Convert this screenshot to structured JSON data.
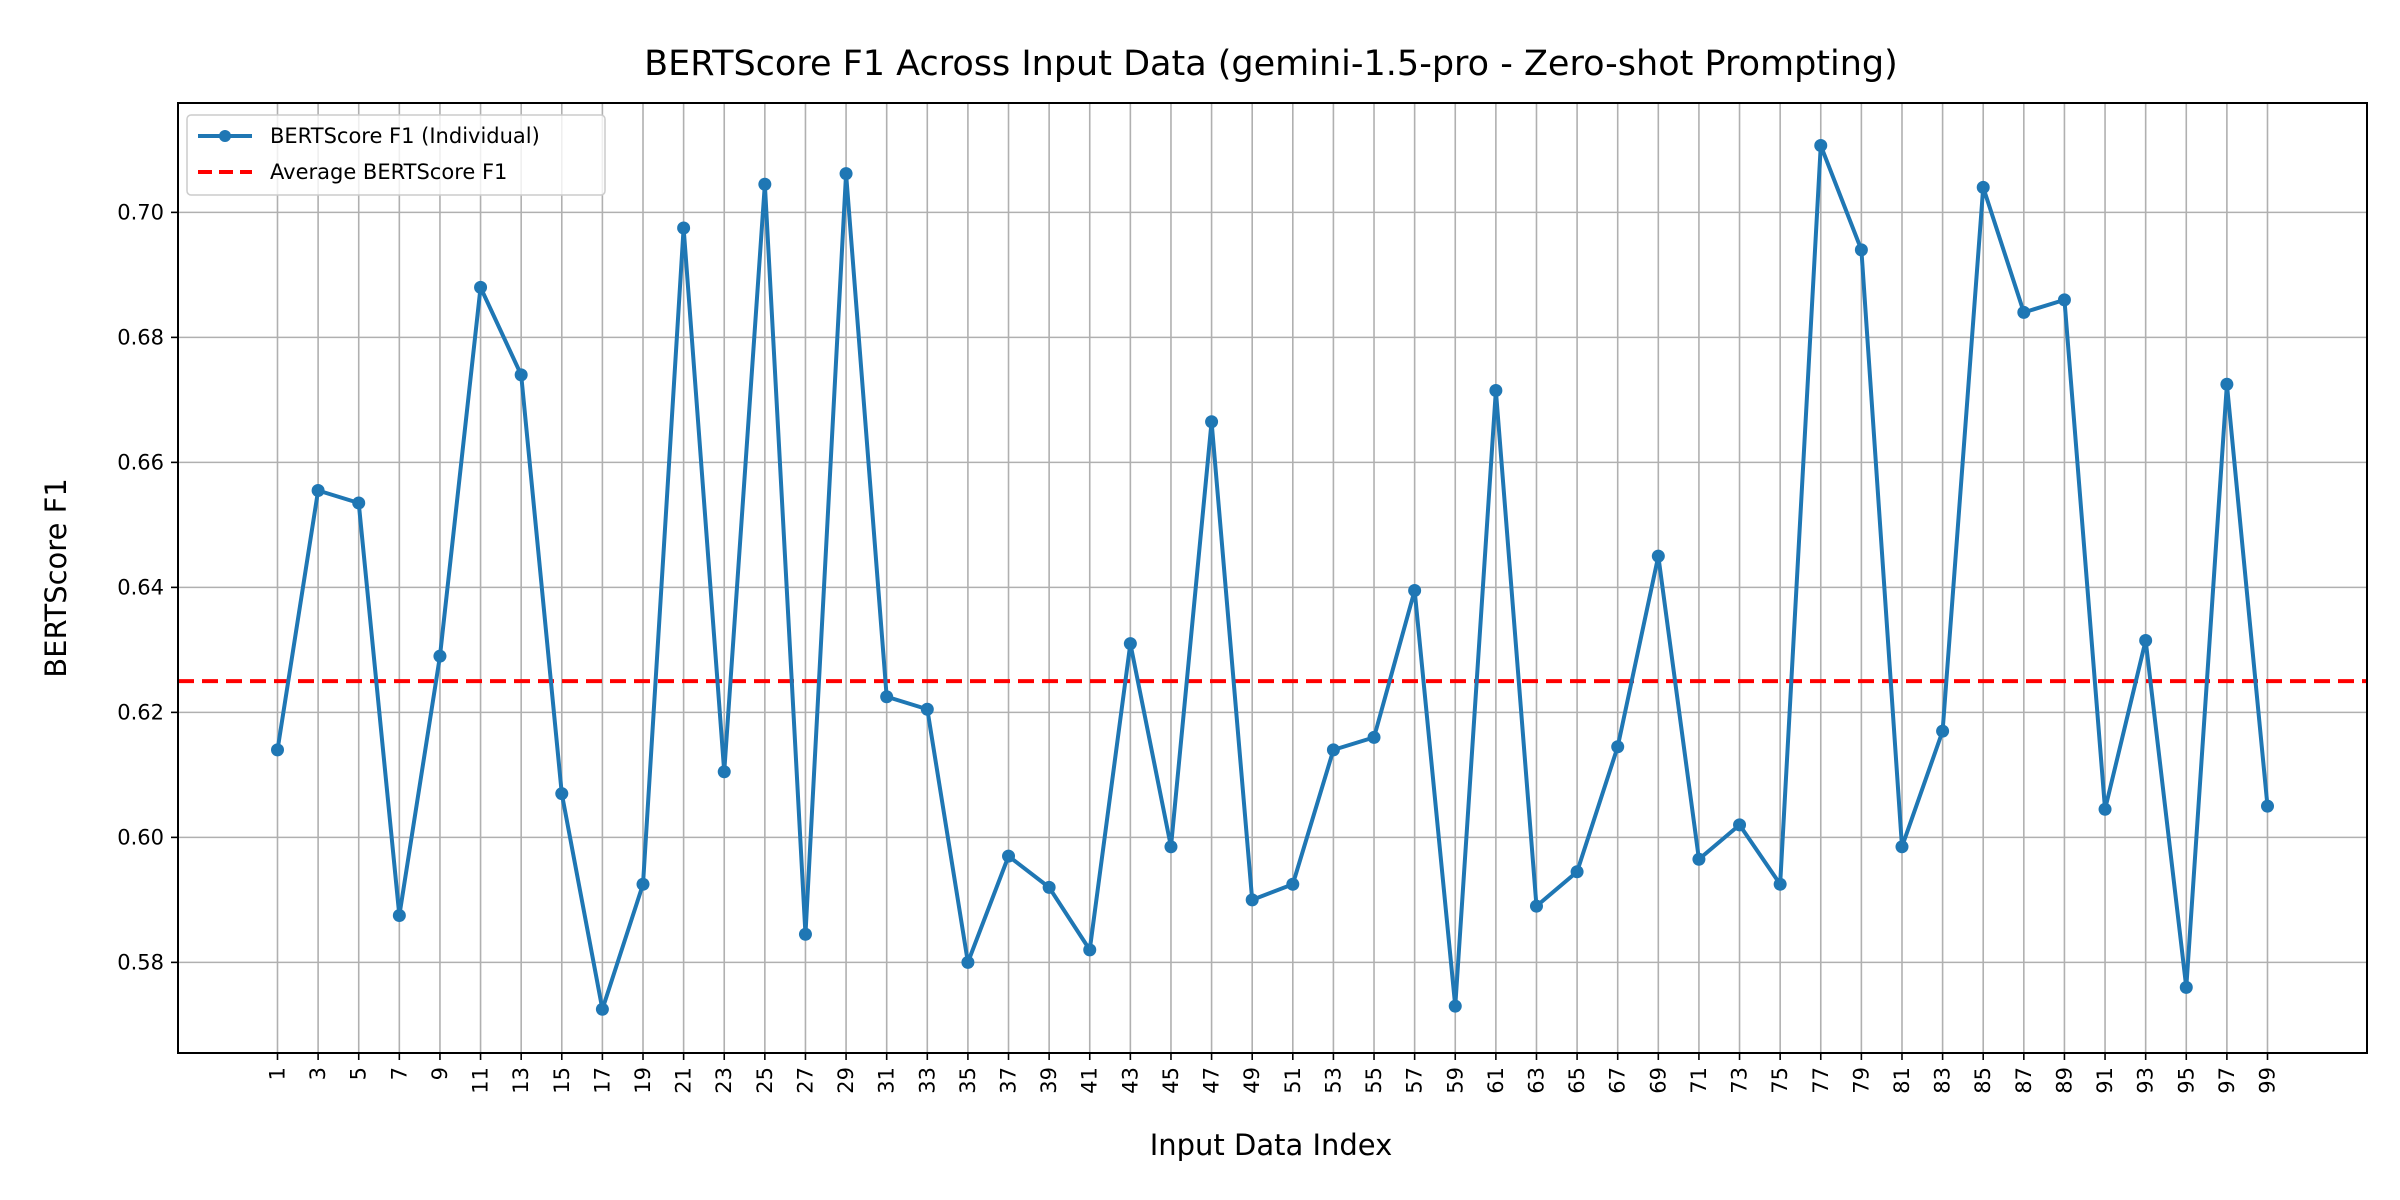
{
  "chart_data": {
    "type": "line",
    "title": "BERTScore F1 Across Input Data (gemini-1.5-pro - Zero-shot Prompting)",
    "xlabel": "Input Data Index",
    "ylabel": "BERTScore F1",
    "x": [
      1,
      3,
      5,
      7,
      9,
      11,
      13,
      15,
      17,
      19,
      21,
      23,
      25,
      27,
      29,
      31,
      33,
      35,
      37,
      39,
      41,
      43,
      45,
      47,
      49,
      51,
      53,
      55,
      57,
      59,
      61,
      63,
      65,
      67,
      69,
      71,
      73,
      75,
      77,
      79,
      81,
      83,
      85,
      87,
      89,
      91,
      93,
      95,
      97,
      99
    ],
    "xlim": [
      -3.9,
      103.9
    ],
    "ylim": [
      0.5655,
      0.7175
    ],
    "yticks": [
      0.58,
      0.6,
      0.62,
      0.64,
      0.66,
      0.68,
      0.7
    ],
    "ytick_labels": [
      "0.58",
      "0.60",
      "0.62",
      "0.64",
      "0.66",
      "0.68",
      "0.70"
    ],
    "xtick_labels": [
      "1",
      "3",
      "5",
      "7",
      "9",
      "11",
      "13",
      "15",
      "17",
      "19",
      "21",
      "23",
      "25",
      "27",
      "29",
      "31",
      "33",
      "35",
      "37",
      "39",
      "41",
      "43",
      "45",
      "47",
      "49",
      "51",
      "53",
      "55",
      "57",
      "59",
      "61",
      "63",
      "65",
      "67",
      "69",
      "71",
      "73",
      "75",
      "77",
      "79",
      "81",
      "83",
      "85",
      "87",
      "89",
      "91",
      "93",
      "95",
      "97",
      "99"
    ],
    "grid": true,
    "legend_position": "top-left",
    "series": [
      {
        "name": "BERTScore F1 (Individual)",
        "color": "#1f77b4",
        "style": "solid-marker",
        "values": [
          0.614,
          0.6555,
          0.6535,
          0.5875,
          0.629,
          0.688,
          0.674,
          0.607,
          0.5725,
          0.5925,
          0.6975,
          0.6105,
          0.7045,
          0.5845,
          0.7062,
          0.6225,
          0.6205,
          0.58,
          0.597,
          0.592,
          0.582,
          0.631,
          0.5985,
          0.6665,
          0.59,
          0.5925,
          0.614,
          0.616,
          0.6395,
          0.573,
          0.6715,
          0.589,
          0.5945,
          0.6145,
          0.645,
          0.5965,
          0.602,
          0.5925,
          0.7107,
          0.694,
          0.5985,
          0.617,
          0.704,
          0.684,
          0.686,
          0.6045,
          0.6315,
          0.576,
          0.6725,
          0.605
        ]
      },
      {
        "name": "Average BERTScore F1",
        "color": "#ff0000",
        "style": "dashed",
        "value": 0.625
      }
    ]
  }
}
